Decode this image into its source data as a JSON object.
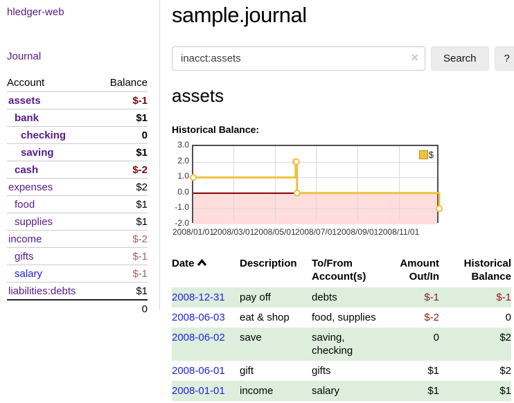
{
  "app": {
    "brand": "hledger-web"
  },
  "colors": {
    "brand_purple": "#551a8b",
    "link_blue": "#2222dd",
    "negative_strong": "#7b0b0b",
    "negative_muted": "#a66060",
    "negative_table": "#8f1d1d",
    "row_green": "#ddeedd",
    "series_gold": "#edc240",
    "chart_negative_region": "#ffdddd",
    "chart_zero_line": "#8b0000"
  },
  "sidebar": {
    "nav_journal": "Journal",
    "accounts": {
      "header_account": "Account",
      "header_balance": "Balance",
      "rows": [
        {
          "name": "assets",
          "indent": 0,
          "bold": true,
          "balance": "$-1",
          "balance_style": "neg-strong"
        },
        {
          "name": "bank",
          "indent": 1,
          "bold": true,
          "balance": "$1",
          "balance_style": "pos"
        },
        {
          "name": "checking",
          "indent": 2,
          "bold": true,
          "balance": "0",
          "balance_style": "pos"
        },
        {
          "name": "saving",
          "indent": 2,
          "bold": true,
          "balance": "$1",
          "balance_style": "pos"
        },
        {
          "name": "cash",
          "indent": 1,
          "bold": true,
          "balance": "$-2",
          "balance_style": "neg-strong"
        },
        {
          "name": "expenses",
          "indent": 0,
          "bold": false,
          "balance": "$2",
          "balance_style": "pos"
        },
        {
          "name": "food",
          "indent": 1,
          "bold": false,
          "balance": "$1",
          "balance_style": "pos"
        },
        {
          "name": "supplies",
          "indent": 1,
          "bold": false,
          "balance": "$1",
          "balance_style": "pos"
        },
        {
          "name": "income",
          "indent": 0,
          "bold": false,
          "balance": "$-2",
          "balance_style": "neg-muted"
        },
        {
          "name": "gifts",
          "indent": 1,
          "bold": false,
          "balance": "$-1",
          "balance_style": "neg-muted"
        },
        {
          "name": "salary",
          "indent": 1,
          "bold": false,
          "link_blue": true,
          "balance": "$-1",
          "balance_style": "neg-muted"
        },
        {
          "name": "liabilities:debts",
          "indent": 0,
          "bold": false,
          "balance": "$1",
          "balance_style": "pos"
        }
      ],
      "total": "0"
    }
  },
  "main": {
    "title": "sample.journal",
    "search": {
      "value": "inacct:assets",
      "clear_icon": "×",
      "button_label": "Search",
      "help_label": "?"
    },
    "section_title": "assets",
    "chart_label": "Historical Balance:"
  },
  "chart_data": {
    "type": "line",
    "style": "step",
    "title": "Historical Balance:",
    "legend": {
      "position": "top-right",
      "entries": [
        "$"
      ]
    },
    "xlim": [
      "2008-01-01",
      "2009-01-01"
    ],
    "ylim": [
      -2,
      3
    ],
    "yticks": [
      {
        "label": "3.0",
        "value": 3
      },
      {
        "label": "2.0",
        "value": 2
      },
      {
        "label": "1.0",
        "value": 1
      },
      {
        "label": "0.0",
        "value": 0
      },
      {
        "label": "-1.0",
        "value": -1
      },
      {
        "label": "-2.0",
        "value": -2
      }
    ],
    "xticks": [
      {
        "label": "2008/01/01",
        "date": "2008-01-01"
      },
      {
        "label": "2008/03/01",
        "date": "2008-03-01"
      },
      {
        "label": "2008/05/01",
        "date": "2008-05-01"
      },
      {
        "label": "2008/07/01",
        "date": "2008-07-01"
      },
      {
        "label": "2008/09/01",
        "date": "2008-09-01"
      },
      {
        "label": "2008/11/01",
        "date": "2008-11-01"
      }
    ],
    "series": [
      {
        "name": "$",
        "color": "#edc240",
        "points": [
          {
            "x": "2008-01-01",
            "y": 1
          },
          {
            "x": "2008-06-01",
            "y": 2
          },
          {
            "x": "2008-06-02",
            "y": 2
          },
          {
            "x": "2008-06-03",
            "y": 0
          },
          {
            "x": "2008-12-31",
            "y": -1
          }
        ]
      }
    ],
    "grid": true,
    "negative_region_shaded": true
  },
  "transactions": {
    "headers": {
      "date": "Date",
      "description": "Description",
      "accounts": [
        "To/From",
        "Account(s)"
      ],
      "amount": [
        "Amount",
        "Out/In"
      ],
      "balance": [
        "Historical",
        "Balance"
      ]
    },
    "sort": {
      "column": "date",
      "direction": "ascending"
    },
    "rows": [
      {
        "date": "2008-12-31",
        "description": "pay off",
        "accounts": "debts",
        "amount": "$-1",
        "amount_neg": true,
        "balance": "$-1",
        "balance_neg": true
      },
      {
        "date": "2008-06-03",
        "description": "eat & shop",
        "accounts": "food, supplies",
        "amount": "$-2",
        "amount_neg": true,
        "balance": "0",
        "balance_neg": false
      },
      {
        "date": "2008-06-02",
        "description": "save",
        "accounts": "saving, checking",
        "amount": "0",
        "amount_neg": false,
        "balance": "$2",
        "balance_neg": false
      },
      {
        "date": "2008-06-01",
        "description": "gift",
        "accounts": "gifts",
        "amount": "$1",
        "amount_neg": false,
        "balance": "$2",
        "balance_neg": false
      },
      {
        "date": "2008-01-01",
        "description": "income",
        "accounts": "salary",
        "amount": "$1",
        "amount_neg": false,
        "balance": "$1",
        "balance_neg": false
      }
    ]
  }
}
